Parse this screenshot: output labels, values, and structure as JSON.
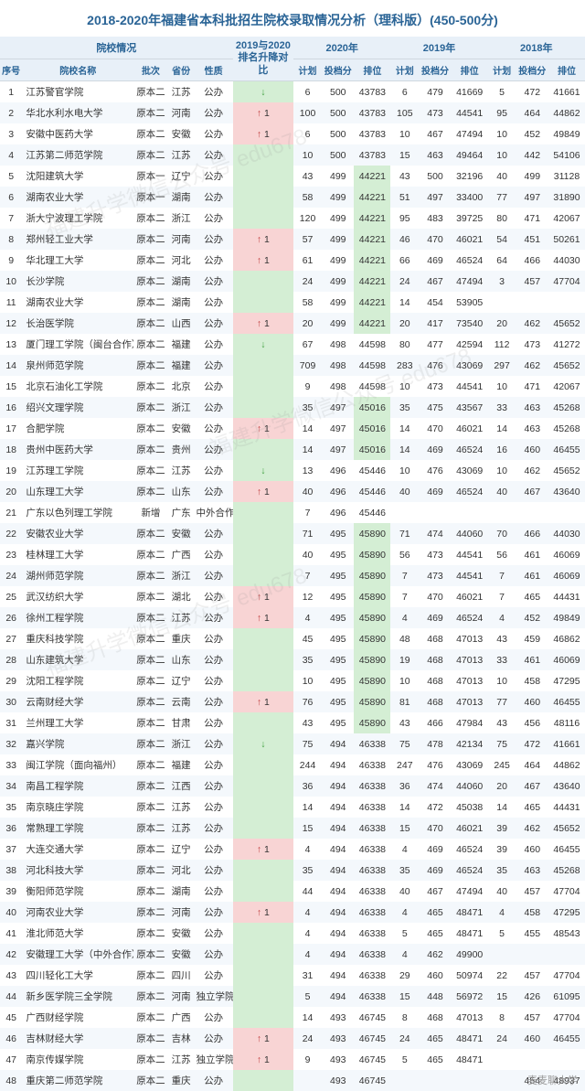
{
  "title": "2018-2020年福建省本科批招生院校录取情况分析（理科版）(450-500分)",
  "header_groups": {
    "school_info": "院校情况",
    "rank_compare": "2019与2020\n排名升降对比",
    "y2020": "2020年",
    "y2019": "2019年",
    "y2018": "2018年"
  },
  "columns": {
    "idx": "序号",
    "name": "院校名称",
    "batch": "批次",
    "prov": "省份",
    "nat": "性质",
    "plan": "计划",
    "score": "投档分",
    "pos": "排位"
  },
  "rows": [
    {
      "i": 1,
      "n": "江苏警官学院",
      "b": "原本二",
      "p": "江苏",
      "t": "公办",
      "ar": "↓",
      "p20": 6,
      "s20": 500,
      "r20": 43783,
      "p19": 6,
      "s19": 479,
      "r19": 41669,
      "p18": 5,
      "s18": 472,
      "r18": 41661
    },
    {
      "i": 2,
      "n": "华北水利水电大学",
      "b": "原本二",
      "p": "河南",
      "t": "公办",
      "ar": "↑",
      "rc": 1,
      "p20": 100,
      "s20": 500,
      "r20": 43783,
      "p19": 105,
      "s19": 473,
      "r19": 44541,
      "p18": 95,
      "s18": 464,
      "r18": 44862
    },
    {
      "i": 3,
      "n": "安徽中医药大学",
      "b": "原本二",
      "p": "安徽",
      "t": "公办",
      "ar": "↑",
      "rc": 1,
      "p20": 6,
      "s20": 500,
      "r20": 43783,
      "p19": 10,
      "s19": 467,
      "r19": 47494,
      "p18": 10,
      "s18": 452,
      "r18": 49849
    },
    {
      "i": 4,
      "n": "江苏第二师范学院",
      "b": "原本二",
      "p": "江苏",
      "t": "公办",
      "ar": "",
      "p20": 10,
      "s20": 500,
      "r20": 43783,
      "p19": 15,
      "s19": 463,
      "r19": 49464,
      "p18": 10,
      "s18": 442,
      "r18": 54106
    },
    {
      "i": 5,
      "n": "沈阳建筑大学",
      "b": "原本一",
      "p": "辽宁",
      "t": "公办",
      "ar": "",
      "p20": 43,
      "s20": 499,
      "r20": 44221,
      "hl20": 1,
      "p19": 43,
      "s19": 500,
      "r19": 32196,
      "p18": 40,
      "s18": 499,
      "r18": 31128
    },
    {
      "i": 6,
      "n": "湖南农业大学",
      "b": "原本一",
      "p": "湖南",
      "t": "公办",
      "ar": "",
      "p20": 58,
      "s20": 499,
      "r20": 44221,
      "hl20": 1,
      "p19": 51,
      "s19": 497,
      "r19": 33400,
      "p18": 77,
      "s18": 497,
      "r18": 31890
    },
    {
      "i": 7,
      "n": "浙大宁波理工学院",
      "b": "原本二",
      "p": "浙江",
      "t": "公办",
      "ar": "",
      "p20": 120,
      "s20": 499,
      "r20": 44221,
      "hl20": 1,
      "p19": 95,
      "s19": 483,
      "r19": 39725,
      "p18": 80,
      "s18": 471,
      "r18": 42067
    },
    {
      "i": 8,
      "n": "郑州轻工业大学",
      "b": "原本二",
      "p": "河南",
      "t": "公办",
      "ar": "↑",
      "rc": 1,
      "p20": 57,
      "s20": 499,
      "r20": 44221,
      "hl20": 1,
      "p19": 46,
      "s19": 470,
      "r19": 46021,
      "p18": 54,
      "s18": 451,
      "r18": 50261
    },
    {
      "i": 9,
      "n": "华北理工大学",
      "b": "原本二",
      "p": "河北",
      "t": "公办",
      "ar": "↑",
      "rc": 1,
      "p20": 61,
      "s20": 499,
      "r20": 44221,
      "hl20": 1,
      "p19": 66,
      "s19": 469,
      "r19": 46524,
      "p18": 64,
      "s18": 466,
      "r18": 44030
    },
    {
      "i": 10,
      "n": "长沙学院",
      "b": "原本二",
      "p": "湖南",
      "t": "公办",
      "ar": "",
      "p20": 24,
      "s20": 499,
      "r20": 44221,
      "hl20": 1,
      "p19": 24,
      "s19": 467,
      "r19": 47494,
      "p18": 3,
      "s18": 457,
      "r18": 47704
    },
    {
      "i": 11,
      "n": "湖南农业大学",
      "b": "原本二",
      "p": "湖南",
      "t": "公办",
      "ar": "",
      "p20": 58,
      "s20": 499,
      "r20": 44221,
      "hl20": 1,
      "p19": 14,
      "s19": 454,
      "r19": 53905,
      "p18": "",
      "s18": "",
      "r18": ""
    },
    {
      "i": 12,
      "n": "长治医学院",
      "b": "原本二",
      "p": "山西",
      "t": "公办",
      "ar": "↑",
      "rc": 1,
      "p20": 20,
      "s20": 499,
      "r20": 44221,
      "hl20": 1,
      "p19": 20,
      "s19": 417,
      "r19": 73540,
      "p18": 20,
      "s18": 462,
      "r18": 45652
    },
    {
      "i": 13,
      "n": "厦门理工学院（闽台合作）",
      "b": "原本二",
      "p": "福建",
      "t": "公办",
      "ar": "↓",
      "p20": 67,
      "s20": 498,
      "r20": 44598,
      "p19": 80,
      "s19": 477,
      "r19": 42594,
      "p18": 112,
      "s18": 473,
      "r18": 41272
    },
    {
      "i": 14,
      "n": "泉州师范学院",
      "b": "原本二",
      "p": "福建",
      "t": "公办",
      "ar": "",
      "p20": 709,
      "s20": 498,
      "r20": 44598,
      "p19": 283,
      "s19": 476,
      "r19": 43069,
      "p18": 297,
      "s18": 462,
      "r18": 45652
    },
    {
      "i": 15,
      "n": "北京石油化工学院",
      "b": "原本二",
      "p": "北京",
      "t": "公办",
      "ar": "",
      "p20": 9,
      "s20": 498,
      "r20": 44598,
      "p19": 10,
      "s19": 473,
      "r19": 44541,
      "p18": 10,
      "s18": 471,
      "r18": 42067
    },
    {
      "i": 16,
      "n": "绍兴文理学院",
      "b": "原本二",
      "p": "浙江",
      "t": "公办",
      "ar": "",
      "p20": 35,
      "s20": 497,
      "r20": 45016,
      "hl20": 1,
      "p19": 35,
      "s19": 475,
      "r19": 43567,
      "p18": 33,
      "s18": 463,
      "r18": 45268
    },
    {
      "i": 17,
      "n": "合肥学院",
      "b": "原本二",
      "p": "安徽",
      "t": "公办",
      "ar": "↑",
      "rc": 1,
      "p20": 14,
      "s20": 497,
      "r20": 45016,
      "hl20": 1,
      "p19": 14,
      "s19": 470,
      "r19": 46021,
      "p18": 14,
      "s18": 463,
      "r18": 45268
    },
    {
      "i": 18,
      "n": "贵州中医药大学",
      "b": "原本二",
      "p": "贵州",
      "t": "公办",
      "ar": "",
      "p20": 14,
      "s20": 497,
      "r20": 45016,
      "hl20": 1,
      "p19": 14,
      "s19": 469,
      "r19": 46524,
      "p18": 16,
      "s18": 460,
      "r18": 46455
    },
    {
      "i": 19,
      "n": "江苏理工学院",
      "b": "原本二",
      "p": "江苏",
      "t": "公办",
      "ar": "↓",
      "p20": 13,
      "s20": 496,
      "r20": 45446,
      "p19": 10,
      "s19": 476,
      "r19": 43069,
      "p18": 10,
      "s18": 462,
      "r18": 45652
    },
    {
      "i": 20,
      "n": "山东理工大学",
      "b": "原本二",
      "p": "山东",
      "t": "公办",
      "ar": "↑",
      "rc": 1,
      "p20": 40,
      "s20": 496,
      "r20": 45446,
      "p19": 40,
      "s19": 469,
      "r19": 46524,
      "p18": 40,
      "s18": 467,
      "r18": 43640
    },
    {
      "i": 21,
      "n": "广东以色列理工学院",
      "b": "新增",
      "p": "广东",
      "t": "中外合作",
      "ar": "",
      "p20": 7,
      "s20": 496,
      "r20": 45446,
      "p19": "",
      "s19": "",
      "r19": "",
      "p18": "",
      "s18": "",
      "r18": ""
    },
    {
      "i": 22,
      "n": "安徽农业大学",
      "b": "原本二",
      "p": "安徽",
      "t": "公办",
      "ar": "",
      "p20": 71,
      "s20": 495,
      "r20": 45890,
      "hl20": 1,
      "p19": 71,
      "s19": 474,
      "r19": 44060,
      "p18": 70,
      "s18": 466,
      "r18": 44030
    },
    {
      "i": 23,
      "n": "桂林理工大学",
      "b": "原本二",
      "p": "广西",
      "t": "公办",
      "ar": "",
      "p20": 40,
      "s20": 495,
      "r20": 45890,
      "hl20": 1,
      "p19": 56,
      "s19": 473,
      "r19": 44541,
      "p18": 56,
      "s18": 461,
      "r18": 46069
    },
    {
      "i": 24,
      "n": "湖州师范学院",
      "b": "原本二",
      "p": "浙江",
      "t": "公办",
      "ar": "",
      "p20": 7,
      "s20": 495,
      "r20": 45890,
      "hl20": 1,
      "p19": 7,
      "s19": 473,
      "r19": 44541,
      "p18": 7,
      "s18": 461,
      "r18": 46069
    },
    {
      "i": 25,
      "n": "武汉纺织大学",
      "b": "原本二",
      "p": "湖北",
      "t": "公办",
      "ar": "↑",
      "rc": 1,
      "p20": 12,
      "s20": 495,
      "r20": 45890,
      "hl20": 1,
      "p19": 7,
      "s19": 470,
      "r19": 46021,
      "p18": 7,
      "s18": 465,
      "r18": 44431
    },
    {
      "i": 26,
      "n": "徐州工程学院",
      "b": "原本二",
      "p": "江苏",
      "t": "公办",
      "ar": "↑",
      "rc": 1,
      "p20": 4,
      "s20": 495,
      "r20": 45890,
      "hl20": 1,
      "p19": 4,
      "s19": 469,
      "r19": 46524,
      "p18": 4,
      "s18": 452,
      "r18": 49849
    },
    {
      "i": 27,
      "n": "重庆科技学院",
      "b": "原本二",
      "p": "重庆",
      "t": "公办",
      "ar": "",
      "p20": 45,
      "s20": 495,
      "r20": 45890,
      "hl20": 1,
      "p19": 48,
      "s19": 468,
      "r19": 47013,
      "p18": 43,
      "s18": 459,
      "r18": 46862
    },
    {
      "i": 28,
      "n": "山东建筑大学",
      "b": "原本二",
      "p": "山东",
      "t": "公办",
      "ar": "",
      "p20": 35,
      "s20": 495,
      "r20": 45890,
      "hl20": 1,
      "p19": 19,
      "s19": 468,
      "r19": 47013,
      "p18": 33,
      "s18": 461,
      "r18": 46069
    },
    {
      "i": 29,
      "n": "沈阳工程学院",
      "b": "原本二",
      "p": "辽宁",
      "t": "公办",
      "ar": "",
      "p20": 10,
      "s20": 495,
      "r20": 45890,
      "hl20": 1,
      "p19": 10,
      "s19": 468,
      "r19": 47013,
      "p18": 10,
      "s18": 458,
      "r18": 47295
    },
    {
      "i": 30,
      "n": "云南财经大学",
      "b": "原本二",
      "p": "云南",
      "t": "公办",
      "ar": "↑",
      "rc": 1,
      "p20": 76,
      "s20": 495,
      "r20": 45890,
      "hl20": 1,
      "p19": 81,
      "s19": 468,
      "r19": 47013,
      "p18": 77,
      "s18": 460,
      "r18": 46455
    },
    {
      "i": 31,
      "n": "兰州理工大学",
      "b": "原本二",
      "p": "甘肃",
      "t": "公办",
      "ar": "",
      "p20": 43,
      "s20": 495,
      "r20": 45890,
      "hl20": 1,
      "p19": 43,
      "s19": 466,
      "r19": 47984,
      "p18": 43,
      "s18": 456,
      "r18": 48116
    },
    {
      "i": 32,
      "n": "嘉兴学院",
      "b": "原本二",
      "p": "浙江",
      "t": "公办",
      "ar": "↓",
      "p20": 75,
      "s20": 494,
      "r20": 46338,
      "p19": 75,
      "s19": 478,
      "r19": 42134,
      "p18": 75,
      "s18": 472,
      "r18": 41661
    },
    {
      "i": 33,
      "n": "闽江学院（面向福州）",
      "b": "原本二",
      "p": "福建",
      "t": "公办",
      "ar": "",
      "p20": 244,
      "s20": 494,
      "r20": 46338,
      "p19": 247,
      "s19": 476,
      "r19": 43069,
      "p18": 245,
      "s18": 464,
      "r18": 44862
    },
    {
      "i": 34,
      "n": "南昌工程学院",
      "b": "原本二",
      "p": "江西",
      "t": "公办",
      "ar": "",
      "p20": 36,
      "s20": 494,
      "r20": 46338,
      "p19": 36,
      "s19": 474,
      "r19": 44060,
      "p18": 20,
      "s18": 467,
      "r18": 43640
    },
    {
      "i": 35,
      "n": "南京晓庄学院",
      "b": "原本二",
      "p": "江苏",
      "t": "公办",
      "ar": "",
      "p20": 14,
      "s20": 494,
      "r20": 46338,
      "p19": 14,
      "s19": 472,
      "r19": 45038,
      "p18": 14,
      "s18": 465,
      "r18": 44431
    },
    {
      "i": 36,
      "n": "常熟理工学院",
      "b": "原本二",
      "p": "江苏",
      "t": "公办",
      "ar": "",
      "p20": 15,
      "s20": 494,
      "r20": 46338,
      "p19": 15,
      "s19": 470,
      "r19": 46021,
      "p18": 39,
      "s18": 462,
      "r18": 45652
    },
    {
      "i": 37,
      "n": "大连交通大学",
      "b": "原本二",
      "p": "辽宁",
      "t": "公办",
      "ar": "↑",
      "rc": 1,
      "p20": 4,
      "s20": 494,
      "r20": 46338,
      "p19": 4,
      "s19": 469,
      "r19": 46524,
      "p18": 39,
      "s18": 460,
      "r18": 46455
    },
    {
      "i": 38,
      "n": "河北科技大学",
      "b": "原本二",
      "p": "河北",
      "t": "公办",
      "ar": "",
      "p20": 35,
      "s20": 494,
      "r20": 46338,
      "p19": 35,
      "s19": 469,
      "r19": 46524,
      "p18": 35,
      "s18": 463,
      "r18": 45268
    },
    {
      "i": 39,
      "n": "衡阳师范学院",
      "b": "原本二",
      "p": "湖南",
      "t": "公办",
      "ar": "",
      "p20": 44,
      "s20": 494,
      "r20": 46338,
      "p19": 40,
      "s19": 467,
      "r19": 47494,
      "p18": 40,
      "s18": 457,
      "r18": 47704
    },
    {
      "i": 40,
      "n": "河南农业大学",
      "b": "原本二",
      "p": "河南",
      "t": "公办",
      "ar": "↑",
      "rc": 1,
      "p20": 4,
      "s20": 494,
      "r20": 46338,
      "p19": 4,
      "s19": 465,
      "r19": 48471,
      "p18": 4,
      "s18": 458,
      "r18": 47295
    },
    {
      "i": 41,
      "n": "淮北师范大学",
      "b": "原本二",
      "p": "安徽",
      "t": "公办",
      "ar": "",
      "p20": 4,
      "s20": 494,
      "r20": 46338,
      "p19": 5,
      "s19": 465,
      "r19": 48471,
      "p18": 5,
      "s18": 455,
      "r18": 48543
    },
    {
      "i": 42,
      "n": "安徽理工大学（中外合作）",
      "b": "原本二",
      "p": "安徽",
      "t": "公办",
      "ar": "",
      "p20": 4,
      "s20": 494,
      "r20": 46338,
      "p19": 4,
      "s19": 462,
      "r19": 49900,
      "p18": "",
      "s18": "",
      "r18": ""
    },
    {
      "i": 43,
      "n": "四川轻化工大学",
      "b": "原本二",
      "p": "四川",
      "t": "公办",
      "ar": "",
      "p20": 31,
      "s20": 494,
      "r20": 46338,
      "p19": 29,
      "s19": 460,
      "r19": 50974,
      "p18": 22,
      "s18": 457,
      "r18": 47704
    },
    {
      "i": 44,
      "n": "新乡医学院三全学院",
      "b": "原本二",
      "p": "河南",
      "t": "独立学院",
      "ar": "",
      "p20": 5,
      "s20": 494,
      "r20": 46338,
      "p19": 15,
      "s19": 448,
      "r19": 56972,
      "p18": 15,
      "s18": 426,
      "r18": 61095
    },
    {
      "i": 45,
      "n": "广西财经学院",
      "b": "原本二",
      "p": "广西",
      "t": "公办",
      "ar": "",
      "p20": 14,
      "s20": 493,
      "r20": 46745,
      "p19": 8,
      "s19": 468,
      "r19": 47013,
      "p18": 8,
      "s18": 457,
      "r18": 47704
    },
    {
      "i": 46,
      "n": "吉林财经大学",
      "b": "原本二",
      "p": "吉林",
      "t": "公办",
      "ar": "↑",
      "rc": 1,
      "p20": 24,
      "s20": 493,
      "r20": 46745,
      "p19": 24,
      "s19": 465,
      "r19": 48471,
      "p18": 24,
      "s18": 460,
      "r18": 46455
    },
    {
      "i": 47,
      "n": "南京传媒学院",
      "b": "原本二",
      "p": "江苏",
      "t": "独立学院",
      "ar": "↑",
      "rc": 1,
      "p20": 9,
      "s20": 493,
      "r20": 46745,
      "p19": 5,
      "s19": 465,
      "r19": 48471,
      "p18": "",
      "s18": "",
      "r18": ""
    },
    {
      "i": 48,
      "n": "重庆第二师范学院",
      "b": "原本二",
      "p": "重庆",
      "t": "公办",
      "ar": "",
      "p20": "",
      "s20": 493,
      "r20": 46745,
      "p19": "",
      "s19": "",
      "r19": "",
      "p18": "",
      "s18": 454,
      "r18": 48937
    }
  ],
  "foot": "麦麦聊大学",
  "colors": {
    "header_bg": "#e8f0f8",
    "header_fg": "#2a6496",
    "row_alt": "#f4f8fc",
    "hl_green": "#d4eed4",
    "hl_red": "#f8d4d4"
  }
}
